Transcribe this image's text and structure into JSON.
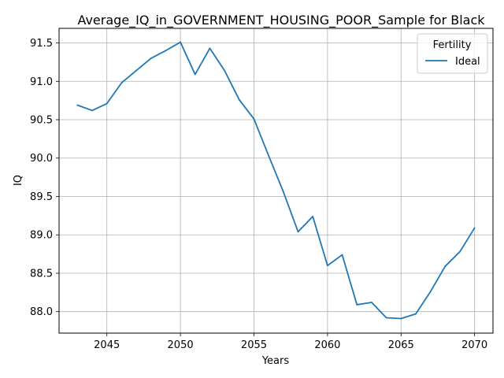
{
  "chart_data": {
    "type": "line",
    "title": "Average_IQ_in_GOVERNMENT_HOUSING_POOR_Sample for Black",
    "xlabel": "Years",
    "ylabel": "IQ",
    "xlim": [
      2041.75,
      2071.25
    ],
    "ylim": [
      87.72,
      91.69
    ],
    "xticks": [
      2045,
      2050,
      2055,
      2060,
      2065,
      2070
    ],
    "yticks": [
      88.0,
      88.5,
      89.0,
      89.5,
      90.0,
      90.5,
      91.0,
      91.5
    ],
    "xtick_labels": [
      "2045",
      "2050",
      "2055",
      "2060",
      "2065",
      "2070"
    ],
    "ytick_labels": [
      "88.0",
      "88.5",
      "89.0",
      "89.5",
      "90.0",
      "90.5",
      "91.0",
      "91.5"
    ],
    "grid": true,
    "legend": {
      "title": "Fertility",
      "placement": "top-right"
    },
    "series": [
      {
        "name": "Ideal",
        "color": "#1f77b4",
        "x": [
          2043,
          2044,
          2045,
          2046,
          2047,
          2048,
          2049,
          2050,
          2051,
          2052,
          2053,
          2054,
          2055,
          2056,
          2057,
          2058,
          2059,
          2060,
          2061,
          2062,
          2063,
          2064,
          2065,
          2066,
          2067,
          2068,
          2069,
          2070
        ],
        "y": [
          90.69,
          90.62,
          90.71,
          90.98,
          91.14,
          91.3,
          91.4,
          91.51,
          91.09,
          91.43,
          91.14,
          90.76,
          90.51,
          90.03,
          89.56,
          89.04,
          89.24,
          88.6,
          88.74,
          88.09,
          88.12,
          87.92,
          87.91,
          87.97,
          88.26,
          88.59,
          88.78,
          89.09
        ]
      }
    ]
  }
}
